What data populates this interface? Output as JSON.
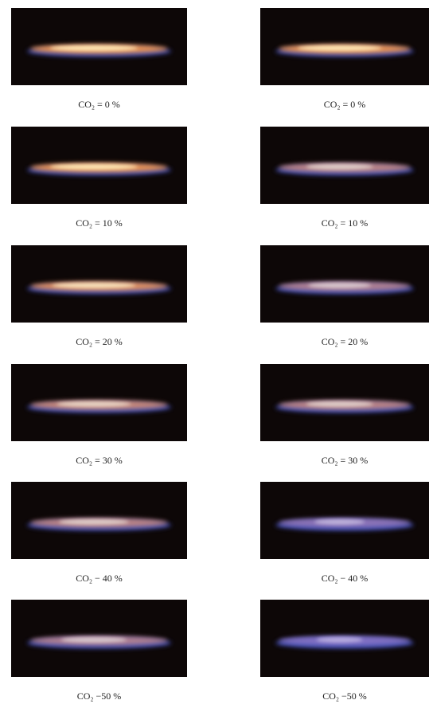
{
  "panels": [
    {
      "caption": "CO₂ = 0 %"
    },
    {
      "caption": "CO₂ = 0 %"
    },
    {
      "caption": "CO₂ = 10 %"
    },
    {
      "caption": "CO₂ = 10 %"
    },
    {
      "caption": "CO₂ = 20 %"
    },
    {
      "caption": "CO₂ = 20 %"
    },
    {
      "caption": "CO₂ = 30 %"
    },
    {
      "caption": "CO₂ = 30 %"
    },
    {
      "caption": "CO₂ − 40 %"
    },
    {
      "caption": "CO₂ − 40 %"
    },
    {
      "caption": "CO₂ −50 %"
    },
    {
      "caption": "CO₂ −50 %"
    }
  ]
}
